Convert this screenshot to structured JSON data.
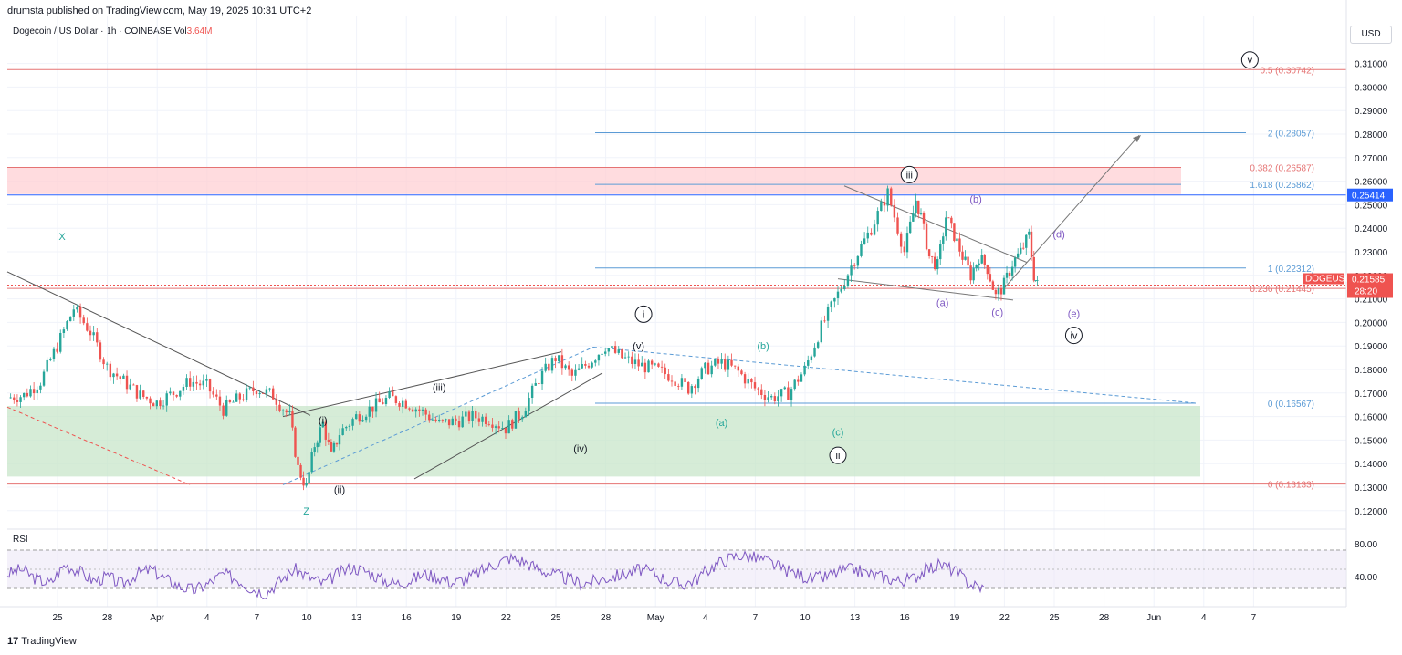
{
  "header": {
    "publish_line": "drumsta published on TradingView.com, May 19, 2025 10:31 UTC+2"
  },
  "legend": {
    "symbol": "Dogecoin / US Dollar · 1h · COINBASE",
    "vol_label": "Vol",
    "vol_value": "3.64M"
  },
  "currency": "USD",
  "rsi_label": "RSI",
  "footer": {
    "brand": "TradingView",
    "mark": "17"
  },
  "colors": {
    "up": "#26a69a",
    "down": "#ef5350",
    "fib_red": "#e57373",
    "fib_blue": "#5b9bd5",
    "green_zone": "#c8e6c9",
    "red_zone": "#ffcdd2",
    "rsi": "#7e57c2"
  },
  "chart_data": {
    "type": "candlestick",
    "y_axis": {
      "ticks": [
        "0.31000",
        "0.30000",
        "0.29000",
        "0.28000",
        "0.27000",
        "0.26000",
        "0.25000",
        "0.24000",
        "0.23000",
        "0.22000",
        "0.21000",
        "0.20000",
        "0.19000",
        "0.18000",
        "0.17000",
        "0.16000",
        "0.15000",
        "0.14000",
        "0.13000",
        "0.12000"
      ]
    },
    "x_axis": {
      "ticks": [
        "25",
        "28",
        "Apr",
        "4",
        "7",
        "10",
        "13",
        "16",
        "19",
        "22",
        "25",
        "28",
        "May",
        "4",
        "7",
        "10",
        "13",
        "16",
        "19",
        "22",
        "25",
        "28",
        "Jun",
        "4",
        "7"
      ]
    },
    "price_path": [
      [
        0,
        0.168
      ],
      [
        1,
        0.169
      ],
      [
        2,
        0.175
      ],
      [
        3,
        0.19
      ],
      [
        4,
        0.206
      ],
      [
        5,
        0.196
      ],
      [
        6,
        0.181
      ],
      [
        7,
        0.175
      ],
      [
        8,
        0.169
      ],
      [
        9,
        0.166
      ],
      [
        10,
        0.17
      ],
      [
        11,
        0.175
      ],
      [
        12,
        0.173
      ],
      [
        13,
        0.163
      ],
      [
        14,
        0.168
      ],
      [
        15,
        0.172
      ],
      [
        16,
        0.169
      ],
      [
        17,
        0.16
      ],
      [
        17.5,
        0.138
      ],
      [
        18,
        0.13
      ],
      [
        18.5,
        0.148
      ],
      [
        19,
        0.157
      ],
      [
        19.5,
        0.143
      ],
      [
        20,
        0.153
      ],
      [
        21,
        0.16
      ],
      [
        22,
        0.164
      ],
      [
        23,
        0.168
      ],
      [
        24,
        0.166
      ],
      [
        25,
        0.162
      ],
      [
        26,
        0.157
      ],
      [
        27,
        0.158
      ],
      [
        28,
        0.16
      ],
      [
        29,
        0.159
      ],
      [
        30,
        0.155
      ],
      [
        31,
        0.162
      ],
      [
        32,
        0.176
      ],
      [
        33,
        0.185
      ],
      [
        34,
        0.177
      ],
      [
        35,
        0.183
      ],
      [
        36,
        0.19
      ],
      [
        37,
        0.185
      ],
      [
        38,
        0.182
      ],
      [
        39,
        0.18
      ],
      [
        40,
        0.177
      ],
      [
        41,
        0.172
      ],
      [
        42,
        0.18
      ],
      [
        43,
        0.183
      ],
      [
        44,
        0.179
      ],
      [
        45,
        0.172
      ],
      [
        46,
        0.168
      ],
      [
        47,
        0.17
      ],
      [
        48,
        0.18
      ],
      [
        49,
        0.198
      ],
      [
        50,
        0.212
      ],
      [
        51,
        0.227
      ],
      [
        52,
        0.24
      ],
      [
        53,
        0.255
      ],
      [
        54,
        0.23
      ],
      [
        54.7,
        0.252
      ],
      [
        55,
        0.245
      ],
      [
        55.5,
        0.228
      ],
      [
        56,
        0.224
      ],
      [
        56.5,
        0.245
      ],
      [
        57,
        0.237
      ],
      [
        57.5,
        0.228
      ],
      [
        58,
        0.22
      ],
      [
        58.5,
        0.228
      ],
      [
        59,
        0.223
      ],
      [
        59.5,
        0.211
      ],
      [
        60,
        0.216
      ],
      [
        60.5,
        0.225
      ],
      [
        61,
        0.23
      ],
      [
        61.5,
        0.237
      ],
      [
        61.8,
        0.22
      ],
      [
        62,
        0.216
      ]
    ],
    "rsi": {
      "levels": [
        "80.00",
        "40.00"
      ],
      "values": [
        55,
        60,
        50,
        45,
        65,
        58,
        48,
        52,
        44,
        55,
        60,
        50,
        42,
        38,
        45,
        55,
        50,
        40,
        35,
        48,
        60,
        52,
        45,
        55,
        62,
        58,
        50,
        45,
        48,
        55,
        52,
        46,
        50,
        58,
        66,
        72,
        68,
        60,
        55,
        50,
        45,
        48,
        52,
        55,
        60,
        56,
        48,
        44,
        50,
        62,
        70,
        75,
        72,
        68,
        60,
        55,
        50,
        52,
        58,
        60,
        55,
        52,
        48,
        50,
        60,
        65,
        58,
        45,
        40
      ]
    },
    "fib_levels": [
      {
        "label": "0.5 (0.30742)",
        "value": 0.30742,
        "color": "#e57373"
      },
      {
        "label": "0.382 (0.26587)",
        "value": 0.26587,
        "color": "#e57373"
      },
      {
        "label": "0.236 (0.21445)",
        "value": 0.21445,
        "color": "#e57373"
      },
      {
        "label": "0 (0.13133)",
        "value": 0.13133,
        "color": "#e57373"
      },
      {
        "label": "2 (0.28057)",
        "value": 0.28057,
        "color": "#5b9bd5"
      },
      {
        "label": "1.618 (0.25862)",
        "value": 0.25862,
        "color": "#5b9bd5"
      },
      {
        "label": "1 (0.22312)",
        "value": 0.22312,
        "color": "#5b9bd5"
      },
      {
        "label": "0 (0.16567)",
        "value": 0.16567,
        "color": "#5b9bd5"
      }
    ],
    "price_tags": [
      {
        "label": "0.25414",
        "value": 0.25414,
        "bg": "#2962ff"
      },
      {
        "symbol": "DOGEUSD",
        "label": "0.21585",
        "countdown": "28:20",
        "value": 0.21585,
        "bg": "#ef5350"
      }
    ],
    "wave_labels": [
      {
        "text": "X",
        "day": 3.3,
        "value": 0.2365,
        "color": "#26a69a"
      },
      {
        "text": "Z",
        "day": 18,
        "value": 0.12,
        "color": "#26a69a"
      },
      {
        "text": "(i)",
        "day": 19,
        "value": 0.1585,
        "color": "#131722"
      },
      {
        "text": "(ii)",
        "day": 20,
        "value": 0.129,
        "color": "#131722"
      },
      {
        "text": "(iii)",
        "day": 26,
        "value": 0.1725,
        "color": "#131722"
      },
      {
        "text": "(iv)",
        "day": 34.5,
        "value": 0.1465,
        "color": "#131722"
      },
      {
        "text": "(v)",
        "day": 38,
        "value": 0.19,
        "color": "#131722"
      },
      {
        "text": "i",
        "day": 38.3,
        "value": 0.2035,
        "color": "#131722",
        "circled": true
      },
      {
        "text": "(a)",
        "day": 43,
        "value": 0.1575,
        "color": "#26a69a"
      },
      {
        "text": "(b)",
        "day": 45.5,
        "value": 0.19,
        "color": "#26a69a"
      },
      {
        "text": "(c)",
        "day": 50,
        "value": 0.1535,
        "color": "#26a69a"
      },
      {
        "text": "ii",
        "day": 50,
        "value": 0.1435,
        "color": "#131722",
        "circled": true
      },
      {
        "text": "iii",
        "day": 54.3,
        "value": 0.2628,
        "color": "#131722",
        "circled": true
      },
      {
        "text": "(a)",
        "day": 56.3,
        "value": 0.2085,
        "color": "#7e57c2"
      },
      {
        "text": "(b)",
        "day": 58.3,
        "value": 0.2525,
        "color": "#7e57c2"
      },
      {
        "text": "(c)",
        "day": 59.6,
        "value": 0.2045,
        "color": "#7e57c2"
      },
      {
        "text": "(d)",
        "day": 63.3,
        "value": 0.2375,
        "color": "#7e57c2"
      },
      {
        "text": "(e)",
        "day": 64.2,
        "value": 0.2038,
        "color": "#7e57c2"
      },
      {
        "text": "iv",
        "day": 64.2,
        "value": 0.1945,
        "color": "#131722",
        "circled": true
      },
      {
        "text": "v",
        "day": 74.8,
        "value": 0.3115,
        "color": "#131722",
        "circled": true
      }
    ]
  }
}
